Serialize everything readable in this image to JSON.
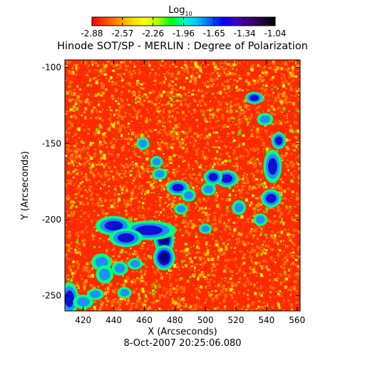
{
  "chart_data": {
    "type": "heatmap",
    "title": "Hinode SOT/SP - MERLIN : Degree of Polarization",
    "xlabel": "X (Arcseconds)",
    "ylabel": "Y (Arcseconds)",
    "xlim": [
      408,
      562
    ],
    "ylim": [
      -260,
      -95
    ],
    "x_ticks": [
      420,
      440,
      460,
      480,
      500,
      520,
      540,
      560
    ],
    "y_ticks": [
      -100,
      -150,
      -200,
      -250
    ],
    "timestamp": "8-Oct-2007 20:25:06.080",
    "colorbar": {
      "label": "Log",
      "label_subscript": "10",
      "min": -2.88,
      "max": -1.04,
      "tick_labels": [
        "-2.88",
        "-2.57",
        "-2.26",
        "-1.96",
        "-1.65",
        "-1.34",
        "-1.04"
      ],
      "colors": [
        "#ff0000",
        "#ff4500",
        "#ff8c00",
        "#ffd700",
        "#ffff00",
        "#b0ff00",
        "#00ff00",
        "#00ffc0",
        "#00c8ff",
        "#0064ff",
        "#0000ff",
        "#4000c0",
        "#400080",
        "#200040",
        "#000000"
      ]
    },
    "colors": {
      "background": "#ff2a00",
      "mottle_a": "#ff6a00",
      "mottle_b": "#ffb000",
      "speckle_yellow": "#f2ee00",
      "speckle_green": "#6de000",
      "plage_edge": "#00ff80",
      "plage_mid": "#1e8fff",
      "plage_core": "#1010d0",
      "plage_peak": "#00008a"
    },
    "plage_regions": [
      {
        "x": 473,
        "y": -213,
        "rx": 3.2,
        "ry": 4.5,
        "level": "peak"
      },
      {
        "x": 473,
        "y": -225,
        "rx": 3.4,
        "ry": 4.0,
        "level": "peak"
      },
      {
        "x": 463,
        "y": -207,
        "rx": 9.0,
        "ry": 3.2,
        "level": "core"
      },
      {
        "x": 440,
        "y": -204,
        "rx": 6.0,
        "ry": 3.2,
        "level": "core"
      },
      {
        "x": 448,
        "y": -212,
        "rx": 5.5,
        "ry": 3.0,
        "level": "core"
      },
      {
        "x": 432,
        "y": -228,
        "rx": 3.5,
        "ry": 3.0,
        "level": "mid"
      },
      {
        "x": 434,
        "y": -236,
        "rx": 3.0,
        "ry": 3.2,
        "level": "mid"
      },
      {
        "x": 444,
        "y": -232,
        "rx": 2.8,
        "ry": 2.5,
        "level": "mid"
      },
      {
        "x": 411,
        "y": -252,
        "rx": 3.0,
        "ry": 5.5,
        "level": "core"
      },
      {
        "x": 420,
        "y": -254,
        "rx": 3.5,
        "ry": 2.5,
        "level": "mid"
      },
      {
        "x": 514,
        "y": -173,
        "rx": 3.8,
        "ry": 2.8,
        "level": "core"
      },
      {
        "x": 505,
        "y": -172,
        "rx": 3.0,
        "ry": 2.6,
        "level": "core"
      },
      {
        "x": 502,
        "y": -180,
        "rx": 2.6,
        "ry": 2.2,
        "level": "mid"
      },
      {
        "x": 544,
        "y": -165,
        "rx": 3.0,
        "ry": 5.5,
        "level": "core"
      },
      {
        "x": 548,
        "y": -148,
        "rx": 2.4,
        "ry": 2.8,
        "level": "core"
      },
      {
        "x": 539,
        "y": -134,
        "rx": 2.8,
        "ry": 2.2,
        "level": "mid"
      },
      {
        "x": 532,
        "y": -120,
        "rx": 3.0,
        "ry": 2.0,
        "level": "core"
      },
      {
        "x": 543,
        "y": -186,
        "rx": 3.4,
        "ry": 3.0,
        "level": "core"
      },
      {
        "x": 536,
        "y": -200,
        "rx": 2.4,
        "ry": 2.2,
        "level": "mid"
      },
      {
        "x": 482,
        "y": -179,
        "rx": 3.8,
        "ry": 2.5,
        "level": "core"
      },
      {
        "x": 489,
        "y": -184,
        "rx": 2.5,
        "ry": 2.2,
        "level": "mid"
      },
      {
        "x": 459,
        "y": -150,
        "rx": 2.2,
        "ry": 2.2,
        "level": "mid"
      },
      {
        "x": 470,
        "y": -170,
        "rx": 2.6,
        "ry": 2.0,
        "level": "mid"
      },
      {
        "x": 468,
        "y": -162,
        "rx": 2.2,
        "ry": 2.0,
        "level": "mid"
      },
      {
        "x": 522,
        "y": -192,
        "rx": 2.4,
        "ry": 2.6,
        "level": "mid"
      },
      {
        "x": 454,
        "y": -229,
        "rx": 2.6,
        "ry": 2.0,
        "level": "mid"
      },
      {
        "x": 447,
        "y": -248,
        "rx": 2.5,
        "ry": 2.0,
        "level": "mid"
      },
      {
        "x": 428,
        "y": -249,
        "rx": 3.0,
        "ry": 2.0,
        "level": "mid"
      },
      {
        "x": 500,
        "y": -206,
        "rx": 2.2,
        "ry": 1.8,
        "level": "mid"
      },
      {
        "x": 484,
        "y": -193,
        "rx": 2.4,
        "ry": 1.9,
        "level": "mid"
      }
    ]
  }
}
